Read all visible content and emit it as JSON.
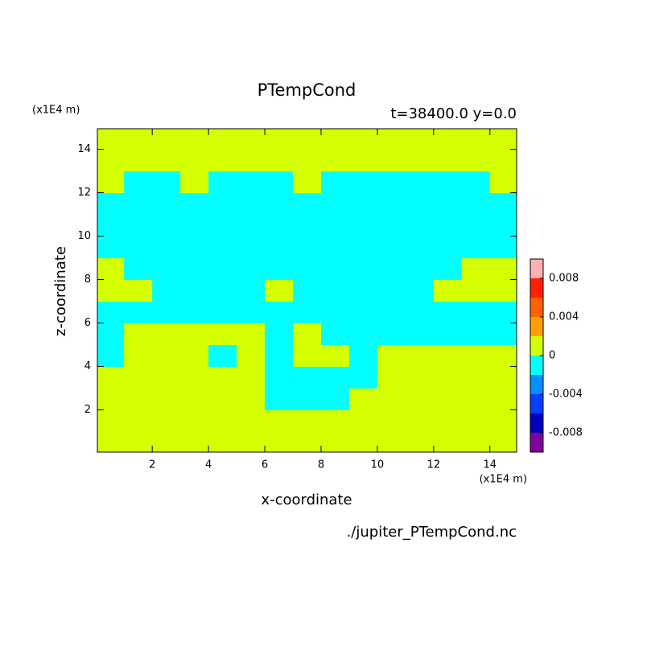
{
  "chart_data": {
    "type": "contour",
    "title": "PTempCond",
    "subtitle": "t=38400.0 y=0.0",
    "xlabel": "x-coordinate",
    "ylabel": "z-coordinate",
    "x_unit": "(x1E4 m)",
    "y_unit": "(x1E4 m)",
    "source": "./jupiter_PTempCond.nc",
    "xlim": [
      0.05,
      14.95
    ],
    "ylim": [
      0.05,
      14.95
    ],
    "xticks": [
      2,
      4,
      6,
      8,
      10,
      12,
      14
    ],
    "yticks": [
      2,
      4,
      6,
      8,
      10,
      12,
      14
    ],
    "x": [
      0.5,
      1.5,
      2.5,
      3.5,
      4.5,
      5.5,
      6.5,
      7.5,
      8.5,
      9.5,
      10.5,
      11.5,
      12.5,
      13.5,
      14.5
    ],
    "y": [
      0.5,
      1.5,
      2.5,
      3.5,
      4.5,
      5.5,
      6.5,
      7.5,
      8.5,
      9.5,
      10.5,
      11.5,
      12.5,
      13.5,
      14.5
    ],
    "z": [
      [
        0.001,
        0.001,
        0.001,
        0.001,
        0.001,
        0.001,
        0.001,
        0.001,
        0.001,
        0.001,
        0.001,
        0.001,
        0.001,
        0.001,
        0.001
      ],
      [
        0.001,
        0.001,
        0.001,
        0.001,
        0.001,
        0.001,
        0.001,
        0.001,
        0.001,
        0.001,
        0.001,
        0.001,
        0.001,
        0.001,
        0.001
      ],
      [
        0.001,
        0.001,
        0.001,
        0.001,
        0.001,
        0.001,
        -0.001,
        -0.001,
        -0.001,
        0.001,
        0.001,
        0.001,
        0.001,
        0.001,
        0.001
      ],
      [
        0.001,
        0.001,
        0.001,
        0.001,
        0.001,
        0.001,
        -0.001,
        -0.001,
        -0.001,
        -0.001,
        0.001,
        0.001,
        0.001,
        0.001,
        0.001
      ],
      [
        -0.001,
        0.001,
        0.001,
        0.001,
        -0.001,
        0.001,
        -0.001,
        0.001,
        0.001,
        -0.001,
        0.001,
        0.001,
        0.001,
        0.001,
        0.001
      ],
      [
        -0.001,
        0.001,
        0.001,
        0.001,
        0.001,
        0.001,
        -0.001,
        0.001,
        -0.001,
        -0.001,
        -0.001,
        -0.001,
        -0.001,
        -0.001,
        -0.001
      ],
      [
        -0.001,
        -0.001,
        -0.001,
        -0.001,
        -0.001,
        -0.001,
        -0.001,
        -0.001,
        -0.001,
        -0.001,
        -0.001,
        -0.001,
        -0.001,
        -0.001,
        -0.001
      ],
      [
        0.001,
        0.001,
        -0.001,
        -0.001,
        -0.001,
        -0.001,
        0.001,
        -0.001,
        -0.001,
        -0.001,
        -0.001,
        -0.001,
        0.001,
        0.001,
        0.001
      ],
      [
        0.001,
        -0.001,
        -0.001,
        -0.001,
        -0.001,
        -0.001,
        -0.001,
        -0.001,
        -0.001,
        -0.001,
        -0.001,
        -0.001,
        -0.001,
        0.001,
        0.001
      ],
      [
        -0.001,
        -0.001,
        -0.001,
        -0.001,
        -0.001,
        -0.001,
        -0.001,
        -0.001,
        -0.001,
        -0.001,
        -0.001,
        -0.001,
        -0.001,
        -0.001,
        -0.001
      ],
      [
        -0.001,
        -0.001,
        -0.001,
        -0.001,
        -0.001,
        -0.001,
        -0.001,
        -0.001,
        -0.001,
        -0.001,
        -0.001,
        -0.001,
        -0.001,
        -0.001,
        -0.001
      ],
      [
        -0.001,
        -0.001,
        -0.001,
        -0.001,
        -0.001,
        -0.001,
        -0.001,
        -0.001,
        -0.001,
        -0.001,
        -0.001,
        -0.001,
        -0.001,
        -0.001,
        -0.001
      ],
      [
        0.001,
        -0.001,
        -0.001,
        0.001,
        -0.001,
        -0.001,
        -0.001,
        0.001,
        -0.001,
        -0.001,
        -0.001,
        -0.001,
        -0.001,
        -0.001,
        0.001
      ],
      [
        0.001,
        0.001,
        0.001,
        0.001,
        0.001,
        0.001,
        0.001,
        0.001,
        0.001,
        0.001,
        0.001,
        0.001,
        0.001,
        0.001,
        0.001
      ],
      [
        0.001,
        0.001,
        0.001,
        0.001,
        0.001,
        0.001,
        0.001,
        0.001,
        0.001,
        0.001,
        0.001,
        0.001,
        0.001,
        0.001,
        0.001
      ]
    ],
    "levels": [
      -0.01,
      -0.008,
      -0.006,
      -0.004,
      -0.002,
      0,
      0.002,
      0.004,
      0.006,
      0.008,
      0.01
    ],
    "colors": [
      "#8000a0",
      "#0000c0",
      "#0040ff",
      "#0090ff",
      "#00ffff",
      "#d4ff00",
      "#ffa000",
      "#ff6000",
      "#ff2000",
      "#ffb0b0"
    ],
    "cbar_ticks": [
      0.008,
      0.004,
      0,
      -0.004,
      -0.008
    ]
  }
}
